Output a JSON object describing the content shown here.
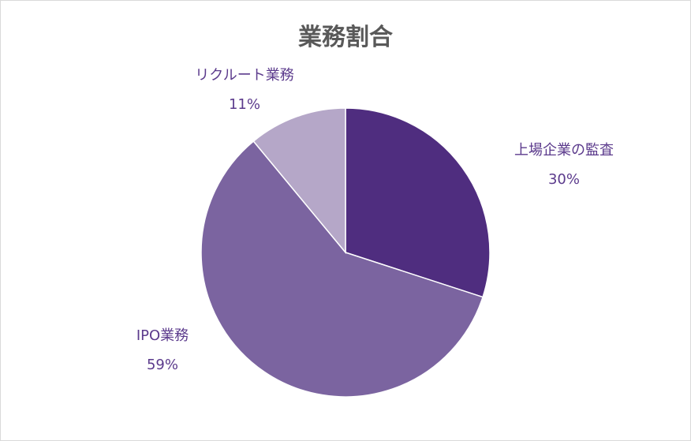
{
  "chart_data": {
    "type": "pie",
    "title": "業務割合",
    "slices": [
      {
        "label": "上場企業の監査",
        "value": 30,
        "value_label": "30%",
        "color": "#4f2d7f"
      },
      {
        "label": "IPO業務",
        "value": 59,
        "value_label": "59%",
        "color": "#7b64a0"
      },
      {
        "label": "リクルート業務",
        "value": 11,
        "value_label": "11%",
        "color": "#b5a7c8"
      }
    ],
    "start_angle_deg": 0,
    "direction": "clockwise",
    "slice_border_color": "#ffffff",
    "label_color": "#5b3a8c"
  }
}
